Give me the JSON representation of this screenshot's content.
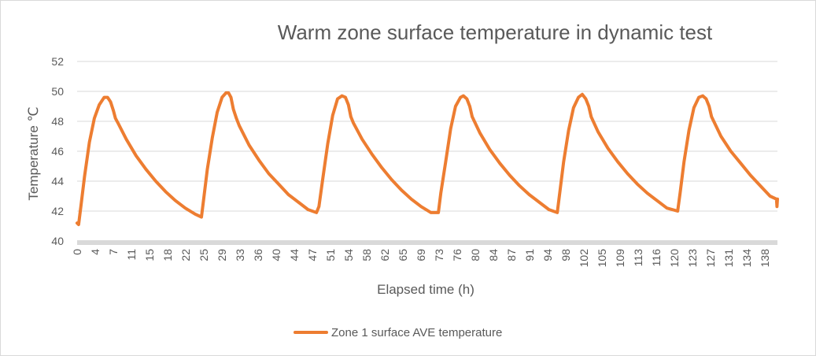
{
  "chart_data": {
    "type": "line",
    "title": "Warm zone surface temperature in dynamic test",
    "xlabel": "Elapsed time (h)",
    "ylabel": "Temperature ℃",
    "ylim": [
      40,
      52
    ],
    "yticks": [
      40,
      42,
      44,
      46,
      48,
      50,
      52
    ],
    "xlim": [
      0,
      142.5
    ],
    "xticks": [
      "0",
      "4",
      "7",
      "11",
      "15",
      "18",
      "22",
      "25",
      "29",
      "33",
      "36",
      "40",
      "44",
      "47",
      "51",
      "54",
      "58",
      "62",
      "65",
      "69",
      "73",
      "76",
      "80",
      "84",
      "87",
      "91",
      "94",
      "98",
      "102",
      "105",
      "109",
      "113",
      "116",
      "120",
      "123",
      "127",
      "131",
      "134",
      "138"
    ],
    "grid": "horizontal",
    "legend_position": "bottom",
    "color": "#ED7D31",
    "series": [
      {
        "name": "Zone 1 surface AVE temperature",
        "x": [
          0,
          0.3,
          0.8,
          1.5,
          2.5,
          3.5,
          4.5,
          5.5,
          6.2,
          6.8,
          7.4,
          7.8,
          8.3,
          10,
          12,
          14,
          16,
          18,
          20,
          22,
          24,
          25.3,
          25.6,
          26.5,
          27.5,
          28.5,
          29.5,
          30.3,
          30.8,
          31.3,
          31.8,
          32.4,
          33,
          35,
          37,
          39,
          41,
          43,
          45,
          47,
          48.7,
          49.2,
          50,
          51,
          52,
          53,
          53.9,
          54.6,
          55.2,
          55.7,
          56.2,
          58,
          60,
          62,
          64,
          66,
          68,
          70,
          72,
          73.5,
          74,
          75,
          76,
          77,
          78,
          78.6,
          79.3,
          79.9,
          80.4,
          82,
          84,
          86,
          88,
          90,
          92,
          94,
          96,
          97.7,
          98.2,
          99,
          100,
          101,
          102,
          102.8,
          103.5,
          104.1,
          104.6,
          106,
          108,
          110,
          112,
          114,
          116,
          118,
          120,
          122.2,
          122.7,
          123.5,
          124.5,
          125.5,
          126.5,
          127.3,
          128,
          128.6,
          129.1,
          131,
          133,
          135,
          137,
          139,
          141,
          142.3,
          142.4,
          142.5
        ],
        "y": [
          41.2,
          41.1,
          42.4,
          44.3,
          46.6,
          48.2,
          49.1,
          49.6,
          49.6,
          49.3,
          48.7,
          48.2,
          47.9,
          46.8,
          45.7,
          44.8,
          44.0,
          43.3,
          42.7,
          42.2,
          41.8,
          41.6,
          42.4,
          44.8,
          46.9,
          48.6,
          49.6,
          49.9,
          49.9,
          49.6,
          48.8,
          48.2,
          47.7,
          46.4,
          45.4,
          44.5,
          43.8,
          43.1,
          42.6,
          42.1,
          41.9,
          42.3,
          44.2,
          46.5,
          48.4,
          49.5,
          49.7,
          49.6,
          49.1,
          48.3,
          47.9,
          46.8,
          45.8,
          44.9,
          44.1,
          43.4,
          42.8,
          42.3,
          41.9,
          41.9,
          43.2,
          45.3,
          47.5,
          49.0,
          49.6,
          49.7,
          49.5,
          49.0,
          48.3,
          47.2,
          46.1,
          45.2,
          44.4,
          43.7,
          43.1,
          42.6,
          42.1,
          41.9,
          43.2,
          45.3,
          47.4,
          48.9,
          49.6,
          49.8,
          49.5,
          49.0,
          48.3,
          47.3,
          46.2,
          45.3,
          44.5,
          43.8,
          43.2,
          42.7,
          42.2,
          42.0,
          43.2,
          45.3,
          47.4,
          48.9,
          49.6,
          49.7,
          49.5,
          49.0,
          48.3,
          47.0,
          46.0,
          45.2,
          44.4,
          43.7,
          43.0,
          42.8,
          42.3,
          42.8
        ]
      }
    ]
  }
}
